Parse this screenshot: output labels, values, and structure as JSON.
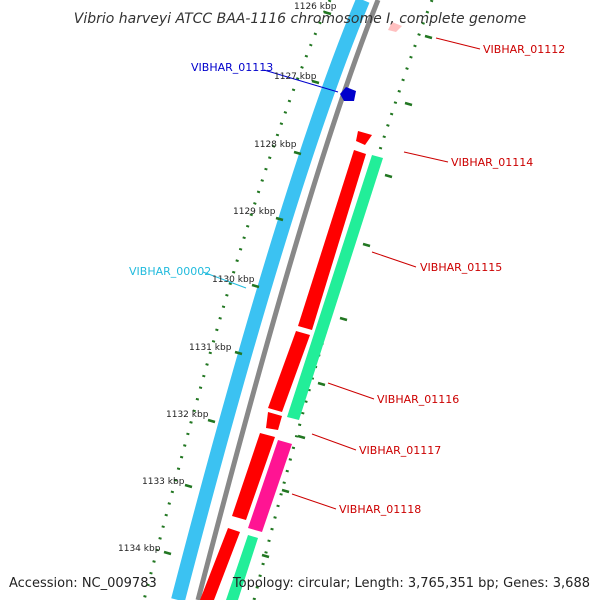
{
  "title": "Vibrio harveyi ATCC BAA-1116 chromosome I, complete genome",
  "footer": {
    "accession": "Accession: NC_009783",
    "topology": "Topology: circular; Length: 3,765,351 bp; Genes: 3,688"
  },
  "colors": {
    "cds_forward": "#ff0000",
    "cds_reverse": "#ff0000",
    "gene_blue": "#0000cc",
    "backbone_blue": "#3bc2f2",
    "backbone_gray": "#888888",
    "track_green": "#22ee99",
    "track_pink": "#ff1493",
    "tick_green": "#227722",
    "label_red": "#cc0000",
    "label_blue": "#0000cc",
    "label_cyan": "#22bbdd"
  },
  "ticks": [
    {
      "label": "1126 kbp"
    },
    {
      "label": "1127 kbp"
    },
    {
      "label": "1128 kbp"
    },
    {
      "label": "1129 kbp"
    },
    {
      "label": "1130 kbp"
    },
    {
      "label": "1131 kbp"
    },
    {
      "label": "1132 kbp"
    },
    {
      "label": "1133 kbp"
    },
    {
      "label": "1134 kbp"
    }
  ],
  "genes": [
    {
      "name": "VIBHAR_01112",
      "color": "label_red"
    },
    {
      "name": "VIBHAR_01113",
      "color": "label_blue"
    },
    {
      "name": "VIBHAR_01114",
      "color": "label_red"
    },
    {
      "name": "VIBHAR_00002",
      "color": "label_cyan"
    },
    {
      "name": "VIBHAR_01115",
      "color": "label_red"
    },
    {
      "name": "VIBHAR_01116",
      "color": "label_red"
    },
    {
      "name": "VIBHAR_01117",
      "color": "label_red"
    },
    {
      "name": "VIBHAR_01118",
      "color": "label_red"
    }
  ]
}
